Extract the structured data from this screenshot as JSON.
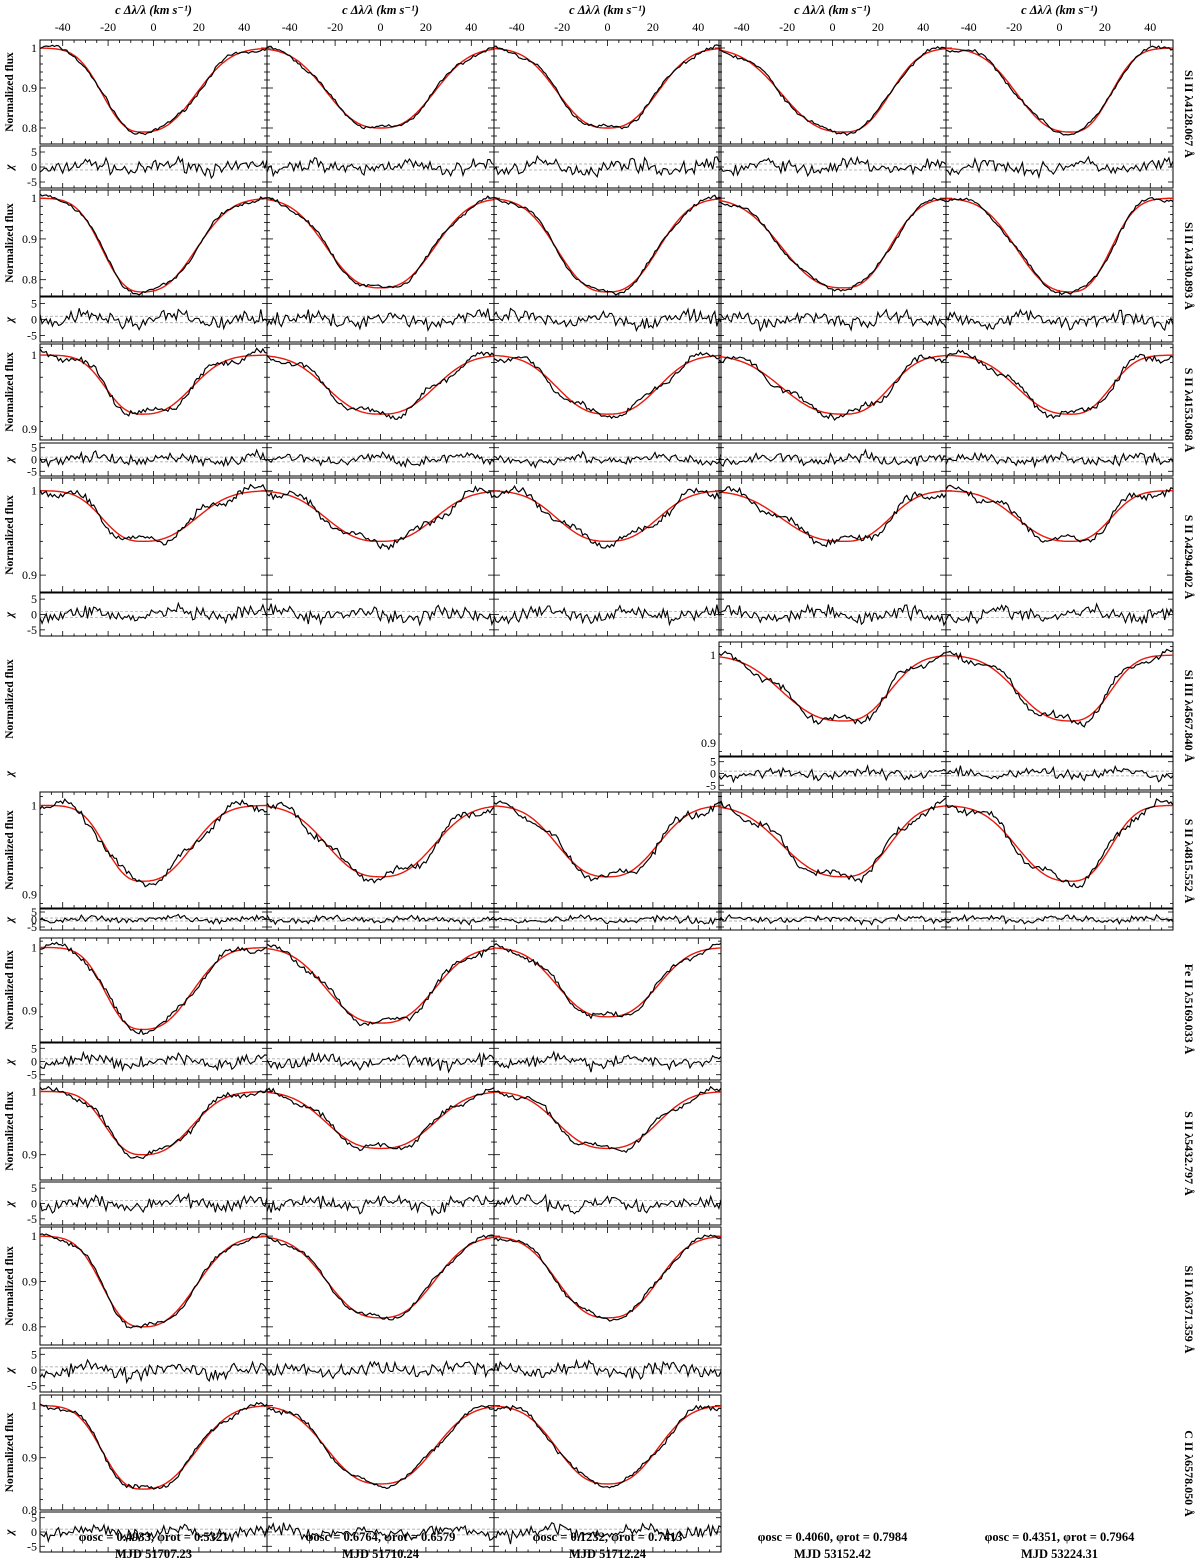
{
  "chart_data": {
    "type": "line",
    "xlabel": "c Δλ/λ (km s⁻¹)",
    "ylabel_flux": "Normalized flux",
    "ylabel_resid": "χ",
    "xlim": [
      -50,
      50
    ],
    "x_ticks": [
      -40,
      -20,
      0,
      20,
      40
    ],
    "resid_ylim": [
      -7,
      7
    ],
    "resid_ticks": [
      5,
      0,
      -5
    ],
    "observed_color": "#000000",
    "model_color": "#e8180c",
    "epochs": [
      {
        "phase": "φosc = 0.4933, φrot = 0.5321",
        "mjd": "MJD 51707.23"
      },
      {
        "phase": "φosc = 0.6764, φrot = 0.6579",
        "mjd": "MJD 51710.24"
      },
      {
        "phase": "φosc = 0.1232, φrot = 0.7413",
        "mjd": "MJD 51712.24"
      },
      {
        "phase": "φosc = 0.4060, φrot = 0.7984",
        "mjd": "MJD 53152.42"
      },
      {
        "phase": "φosc = 0.4351, φrot = 0.7964",
        "mjd": "MJD 53224.31"
      }
    ],
    "lines": [
      {
        "label": "Si II λ4128.067 Å",
        "ylim": [
          0.76,
          1.02
        ],
        "yticks": [
          "1",
          "0.9",
          "0.8"
        ],
        "profiles": [
          {
            "depth": 0.21,
            "center": -5,
            "width": 26,
            "skew": -0.3
          },
          {
            "depth": 0.2,
            "center": 0,
            "width": 30,
            "skew": 0
          },
          {
            "depth": 0.2,
            "center": 0,
            "width": 28,
            "skew": 0
          },
          {
            "depth": 0.21,
            "center": 5,
            "width": 30,
            "skew": 0.3
          },
          {
            "depth": 0.21,
            "center": 5,
            "width": 26,
            "skew": 0.3
          }
        ]
      },
      {
        "label": "Si II λ4130.893 Å",
        "ylim": [
          0.76,
          1.02
        ],
        "yticks": [
          "1",
          "0.9",
          "0.8"
        ],
        "profiles": [
          {
            "depth": 0.23,
            "center": -5,
            "width": 26,
            "skew": -0.3
          },
          {
            "depth": 0.22,
            "center": 0,
            "width": 30,
            "skew": 0
          },
          {
            "depth": 0.23,
            "center": 0,
            "width": 28,
            "skew": 0
          },
          {
            "depth": 0.22,
            "center": 5,
            "width": 30,
            "skew": 0.3
          },
          {
            "depth": 0.23,
            "center": 5,
            "width": 26,
            "skew": 0.3
          }
        ]
      },
      {
        "label": "S II λ4153.068 Å",
        "ylim": [
          0.885,
          1.015
        ],
        "yticks": [
          "1",
          "0.9"
        ],
        "profiles": [
          {
            "depth": 0.08,
            "center": -5,
            "width": 24,
            "skew": -0.3
          },
          {
            "depth": 0.08,
            "center": 0,
            "width": 30,
            "skew": 0
          },
          {
            "depth": 0.08,
            "center": 0,
            "width": 28,
            "skew": 0
          },
          {
            "depth": 0.08,
            "center": 5,
            "width": 30,
            "skew": 0.3
          },
          {
            "depth": 0.08,
            "center": 5,
            "width": 26,
            "skew": 0.3
          }
        ]
      },
      {
        "label": "S II λ4294.402 Å",
        "ylim": [
          0.88,
          1.015
        ],
        "yticks": [
          "1",
          "0.9"
        ],
        "profiles": [
          {
            "depth": 0.06,
            "center": -5,
            "width": 26,
            "skew": -0.3
          },
          {
            "depth": 0.06,
            "center": 0,
            "width": 30,
            "skew": 0
          },
          {
            "depth": 0.06,
            "center": 0,
            "width": 28,
            "skew": 0
          },
          {
            "depth": 0.06,
            "center": 5,
            "width": 30,
            "skew": 0.3
          },
          {
            "depth": 0.06,
            "center": 5,
            "width": 26,
            "skew": 0.3
          }
        ]
      },
      {
        "label": "Si III λ4567.840 Å",
        "ylim": [
          0.885,
          1.015
        ],
        "yticks": [
          "1",
          "0.9"
        ],
        "profiles": [
          null,
          null,
          null,
          {
            "depth": 0.075,
            "center": 5,
            "width": 30,
            "skew": 0.3
          },
          {
            "depth": 0.075,
            "center": 5,
            "width": 26,
            "skew": 0.3
          }
        ]
      },
      {
        "label": "S II λ4815.552 Å",
        "ylim": [
          0.885,
          1.015
        ],
        "yticks": [
          "1",
          "0.9"
        ],
        "profiles": [
          {
            "depth": 0.085,
            "center": -5,
            "width": 24,
            "skew": -0.3
          },
          {
            "depth": 0.08,
            "center": 0,
            "width": 30,
            "skew": 0
          },
          {
            "depth": 0.08,
            "center": 0,
            "width": 28,
            "skew": 0
          },
          {
            "depth": 0.08,
            "center": 5,
            "width": 30,
            "skew": 0.3
          },
          {
            "depth": 0.085,
            "center": 5,
            "width": 26,
            "skew": 0.3
          }
        ]
      },
      {
        "label": "Fe II λ5169.033 Å",
        "ylim": [
          0.85,
          1.015
        ],
        "yticks": [
          "1",
          "0.9"
        ],
        "profiles": [
          {
            "depth": 0.13,
            "center": -5,
            "width": 24,
            "skew": -0.3
          },
          {
            "depth": 0.12,
            "center": 0,
            "width": 30,
            "skew": 0
          },
          {
            "depth": 0.11,
            "center": 0,
            "width": 28,
            "skew": 0
          },
          null,
          null
        ]
      },
      {
        "label": "S II λ5432.797 Å",
        "ylim": [
          0.86,
          1.015
        ],
        "yticks": [
          "1",
          "0.9"
        ],
        "profiles": [
          {
            "depth": 0.1,
            "center": -5,
            "width": 24,
            "skew": -0.3
          },
          {
            "depth": 0.09,
            "center": 0,
            "width": 30,
            "skew": 0
          },
          {
            "depth": 0.09,
            "center": 0,
            "width": 28,
            "skew": 0
          },
          null,
          null
        ]
      },
      {
        "label": "Si II λ6371.359 Å",
        "ylim": [
          0.76,
          1.02
        ],
        "yticks": [
          "1",
          "0.9",
          "0.8"
        ],
        "profiles": [
          {
            "depth": 0.2,
            "center": -5,
            "width": 26,
            "skew": -0.3
          },
          {
            "depth": 0.18,
            "center": 0,
            "width": 30,
            "skew": 0
          },
          {
            "depth": 0.18,
            "center": 0,
            "width": 28,
            "skew": 0
          },
          null,
          null
        ]
      },
      {
        "label": "C II λ6578.050 Å",
        "ylim": [
          0.8,
          1.02
        ],
        "yticks": [
          "1",
          "0.9",
          "0.8"
        ],
        "profiles": [
          {
            "depth": 0.16,
            "center": -5,
            "width": 26,
            "skew": -0.3
          },
          {
            "depth": 0.15,
            "center": 0,
            "width": 30,
            "skew": 0
          },
          {
            "depth": 0.15,
            "center": 0,
            "width": 28,
            "skew": 0
          },
          null,
          null
        ]
      }
    ]
  }
}
